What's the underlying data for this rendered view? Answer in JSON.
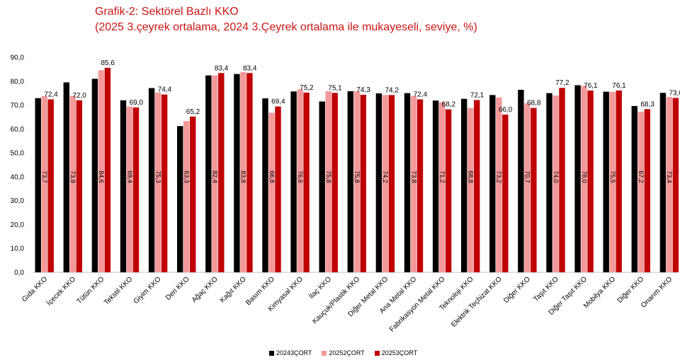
{
  "header": {
    "title": "Grafik-2: Sektörel Bazlı KKO",
    "subtitle": "(2025 3.çeyrek ortalama, 2024 3.Çeyrek ortalama ile mukayeseli, seviye, %)"
  },
  "chart_data": {
    "type": "bar",
    "title": "Grafik-2: Sektörel Bazlı KKO",
    "subtitle": "(2025 3.çeyrek ortalama, 2024 3.Çeyrek ortalama ile mukayeseli, seviye, %)",
    "ylim": [
      0,
      90
    ],
    "yticks": [
      "0,0",
      "10,0",
      "20,0",
      "30,0",
      "40,0",
      "50,0",
      "60,0",
      "70,0",
      "80,0",
      "90,0"
    ],
    "grid": false,
    "legend_position": "bottom",
    "categories": [
      "Gıda KKO",
      "İçecek KKO",
      "Tütün KKO",
      "Tekstil KKO",
      "Giyim KKO",
      "Deri KKO",
      "Ağaç KKO",
      "Kağıt KKO",
      "Basım KKO",
      "Kimyasal KKO",
      "İlaç KKO",
      "Kauçuk/Plastik KKO",
      "Diğer Metal KKO",
      "Ana Metal KKO",
      "Fabrikasyon Metal KKO",
      "Teknoloji KKO",
      "Elektrik Teçhizat KKO",
      "Diğer KKO",
      "Taşıt KKO",
      "Diğer Taşıt KKO",
      "Mobilya KKO",
      "Diğer KKO",
      "Onarım KKO"
    ],
    "series": [
      {
        "name": "20243ÇORT",
        "color": "#000000",
        "values": [
          72.9,
          79.5,
          81.0,
          72.0,
          77.1,
          61.2,
          82.4,
          83.0,
          72.8,
          75.7,
          71.5,
          75.8,
          74.9,
          75.0,
          71.9,
          72.6,
          74.2,
          76.4,
          75.0,
          78.3,
          75.6,
          69.6,
          75.1
        ],
        "labels": [
          "72,9",
          "79,5",
          "81,0",
          "72,0",
          "77,1",
          "61,2",
          "82,4",
          "83,0",
          "72,8",
          "75,7",
          "71,5",
          "75,8",
          "74,9",
          "75,0",
          "71,9",
          "72,6",
          "74,2",
          "76,4",
          "75,0",
          "78,3",
          "75,6",
          "69,6",
          "75,1"
        ]
      },
      {
        "name": "20252ÇORT",
        "color": "#f4999a",
        "values": [
          73.7,
          73.9,
          84.6,
          69.4,
          75.3,
          63.3,
          82.4,
          83.8,
          66.8,
          76.6,
          75.8,
          75.8,
          74.2,
          73.8,
          71.2,
          68.8,
          73.2,
          70.7,
          74.0,
          78.0,
          75.5,
          67.2,
          73.4
        ],
        "labels": [
          "73,7",
          "73,9",
          "84,6",
          "69,4",
          "75,3",
          "63,3",
          "82,4",
          "83,8",
          "66,8",
          "76,6",
          "75,8",
          "75,8",
          "74,2",
          "73,8",
          "71,2",
          "68,8",
          "73,2",
          "70,7",
          "74,0",
          "78,0",
          "75,5",
          "67,2",
          "73,4"
        ]
      },
      {
        "name": "20253ÇORT",
        "color": "#c00000",
        "values": [
          72.4,
          72.0,
          85.6,
          69.0,
          74.4,
          65.2,
          83.4,
          83.4,
          69.4,
          75.2,
          75.1,
          74.3,
          74.2,
          72.4,
          68.2,
          72.1,
          66.0,
          68.8,
          77.2,
          76.1,
          76.1,
          68.3,
          73.0
        ],
        "labels": [
          "72,4",
          "72,0",
          "85,6",
          "69,0",
          "74,4",
          "65,2",
          "83,4",
          "83,4",
          "69,4",
          "75,2",
          "75,1",
          "74,3",
          "74,2",
          "72,4",
          "68,2",
          "72,1",
          "66,0",
          "68,8",
          "77,2",
          "76,1",
          "76,1",
          "68,3",
          "73,0"
        ]
      }
    ]
  }
}
